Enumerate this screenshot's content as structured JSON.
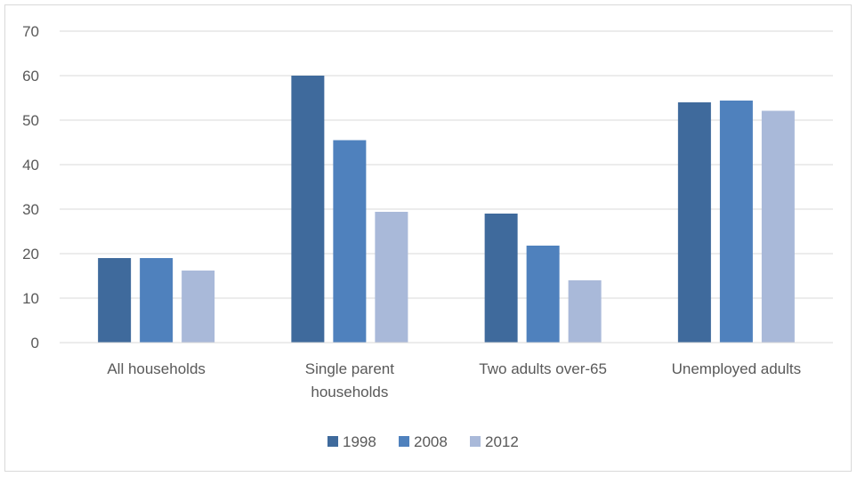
{
  "chart_data": {
    "type": "bar",
    "title": "",
    "xlabel": "",
    "ylabel": "",
    "ylim": [
      0,
      70
    ],
    "yticks": [
      0,
      10,
      20,
      30,
      40,
      50,
      60,
      70
    ],
    "grid": true,
    "legend_position": "bottom",
    "categories": [
      [
        "All households"
      ],
      [
        "Single parent",
        "households"
      ],
      [
        "Two adults over-65"
      ],
      [
        "Unemployed adults"
      ]
    ],
    "series": [
      {
        "name": "1998",
        "color": "#3f6a9c",
        "values": [
          19,
          60,
          29,
          54
        ]
      },
      {
        "name": "2008",
        "color": "#4f81bd",
        "values": [
          19,
          45.5,
          21.8,
          54.4
        ]
      },
      {
        "name": "2012",
        "color": "#a9b9d9",
        "values": [
          16.2,
          29.4,
          14,
          52.1
        ]
      }
    ]
  }
}
